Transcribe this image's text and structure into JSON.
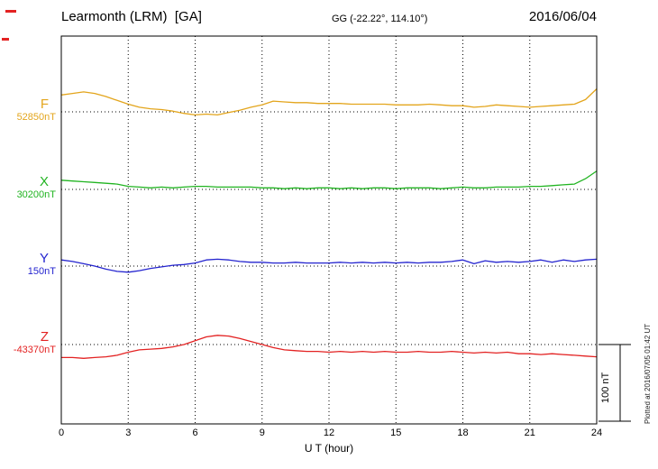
{
  "header": {
    "station": "Learmonth (LRM)  [GA]",
    "coordinates": "GG (-22.22°, 114.10°)",
    "date": "2016/06/04"
  },
  "footer_rotated": "Plotted at 2016/07/05 01:42 UT",
  "chart_data": {
    "type": "line",
    "title": "Learmonth (LRM) [GA] magnetogram 2016/06/04",
    "xlabel": "U T (hour)",
    "x_range": [
      0,
      24
    ],
    "xticks": [
      0,
      3,
      6,
      9,
      12,
      15,
      18,
      21,
      24
    ],
    "grid": "dotted vertical lines at each 3-hour tick; dotted horizontal baseline per component",
    "legend_position": "left margin labels",
    "scale_bar": {
      "label": "100 nT",
      "span_nT": 100
    },
    "x_step_hours": 0.5,
    "series": [
      {
        "name": "F",
        "baseline_value_label": "52850nT",
        "baseline_nT": 52850,
        "color": "#e3a51c",
        "offsets_nT": [
          22,
          24,
          26,
          24,
          20,
          15,
          10,
          6,
          4,
          3,
          1,
          -2,
          -4,
          -3,
          -4,
          -1,
          2,
          6,
          9,
          14,
          13,
          12,
          12,
          11,
          11,
          11,
          10,
          10,
          10,
          10,
          9,
          9,
          9,
          10,
          9,
          8,
          8,
          6,
          7,
          9,
          8,
          7,
          6,
          7,
          8,
          9,
          10,
          16,
          30
        ]
      },
      {
        "name": "X",
        "baseline_value_label": "30200nT",
        "baseline_nT": 30200,
        "color": "#21b421",
        "offsets_nT": [
          12,
          11,
          10,
          9,
          8,
          7,
          4,
          3,
          2,
          3,
          2,
          3,
          4,
          4,
          3,
          3,
          3,
          3,
          2,
          2,
          1,
          2,
          1,
          2,
          2,
          1,
          2,
          1,
          2,
          2,
          1,
          2,
          2,
          2,
          1,
          2,
          3,
          2,
          2,
          3,
          3,
          3,
          4,
          4,
          5,
          6,
          7,
          14,
          24
        ]
      },
      {
        "name": "Y",
        "baseline_value_label": "150nT",
        "baseline_nT": 150,
        "color": "#2424cf",
        "offsets_nT": [
          8,
          6,
          3,
          0,
          -4,
          -7,
          -8,
          -6,
          -3,
          -1,
          1,
          2,
          4,
          8,
          9,
          8,
          6,
          5,
          5,
          4,
          4,
          5,
          4,
          4,
          4,
          5,
          4,
          5,
          4,
          5,
          4,
          5,
          4,
          5,
          5,
          6,
          8,
          3,
          7,
          5,
          6,
          5,
          6,
          8,
          5,
          8,
          6,
          8,
          9
        ]
      },
      {
        "name": "Z",
        "baseline_value_label": "-43370nT",
        "baseline_nT": -43370,
        "color": "#e32222",
        "offsets_nT": [
          -17,
          -17,
          -18,
          -17,
          -16,
          -14,
          -10,
          -7,
          -6,
          -5,
          -3,
          0,
          5,
          10,
          12,
          11,
          8,
          4,
          0,
          -4,
          -7,
          -8,
          -9,
          -9,
          -10,
          -9,
          -10,
          -9,
          -10,
          -9,
          -10,
          -10,
          -9,
          -10,
          -10,
          -9,
          -10,
          -11,
          -10,
          -11,
          -10,
          -12,
          -12,
          -13,
          -12,
          -13,
          -14,
          -15,
          -16
        ]
      }
    ]
  }
}
